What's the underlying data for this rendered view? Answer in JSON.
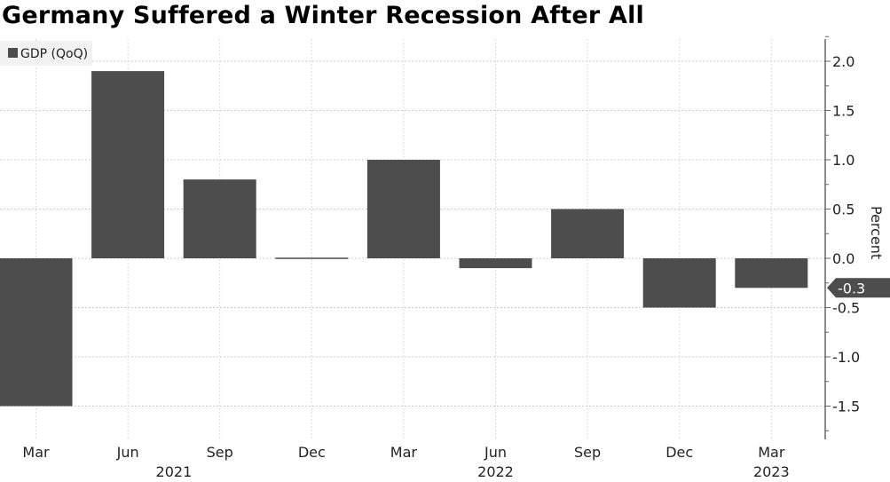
{
  "chart_data": {
    "type": "bar",
    "title": "Germany Suffered a Winter Recession After All",
    "ylabel": "Percent",
    "legend": {
      "entries": [
        "GDP (QoQ)"
      ],
      "placement": "top-left"
    },
    "categories": [
      "Mar",
      "Jun",
      "Sep",
      "Dec",
      "Mar",
      "Jun",
      "Sep",
      "Dec",
      "Mar"
    ],
    "year_labels": [
      {
        "label": "2021",
        "category_index": 1.5
      },
      {
        "label": "2022",
        "category_index": 5
      },
      {
        "label": "2023",
        "category_index": 8
      }
    ],
    "series": [
      {
        "name": "GDP (QoQ)",
        "values": [
          -1.5,
          1.9,
          0.8,
          0.0,
          1.0,
          -0.1,
          0.5,
          -0.5,
          -0.3
        ],
        "color": "#4d4d4d"
      }
    ],
    "last_value_label": "-0.3",
    "yticks": [
      2.0,
      1.5,
      1.0,
      0.5,
      0.0,
      -0.5,
      -1.0,
      -1.5
    ],
    "ytick_labels": [
      "2.0",
      "1.5",
      "1.0",
      "0.5",
      "0.0",
      "-0.5",
      "-1.0",
      "-1.5"
    ],
    "ylim": [
      -1.84,
      2.22
    ],
    "grid": true,
    "y_axis_side": "right"
  }
}
